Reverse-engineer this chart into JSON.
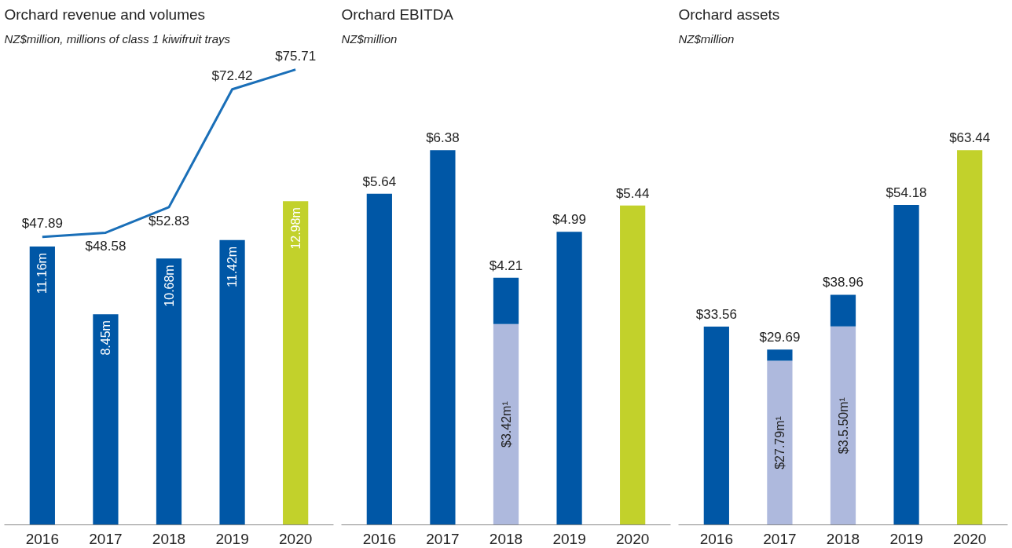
{
  "chart_data": [
    {
      "type": "bar",
      "title": "Orchard revenue and volumes",
      "subtitle": "NZ$million, millions of class 1 kiwifruit trays",
      "categories": [
        "2016",
        "2017",
        "2018",
        "2019",
        "2020"
      ],
      "tick_labels": "x",
      "series": [
        {
          "type": "bar",
          "colors": [
            "#0057a6",
            "#0057a6",
            "#0057a6",
            "#0057a6",
            "#c2d12b"
          ],
          "values": [
            11.16,
            8.45,
            10.68,
            11.42,
            12.98
          ],
          "value_labels": [
            "11.16m",
            "8.45m",
            "10.68m",
            "11.42m",
            "12.98m"
          ]
        },
        {
          "type": "line",
          "axis": "y2",
          "color": "#1a6fb8",
          "values": [
            47.89,
            48.58,
            52.83,
            72.42,
            75.71
          ],
          "value_labels": [
            "$47.89",
            "$48.58",
            "$52.83",
            "$72.42",
            "$75.71"
          ]
        }
      ]
    },
    {
      "type": "bar",
      "title": "Orchard EBITDA",
      "subtitle": "NZ$million",
      "categories": [
        "2016",
        "2017",
        "2018",
        "2019",
        "2020"
      ],
      "tick_labels": "x",
      "stacked": true,
      "totals": [
        "$5.64",
        "$6.38",
        "$4.21",
        "$4.99",
        "$5.44"
      ],
      "series": [
        {
          "type": "bar",
          "color": "#aeb9dd",
          "values": [
            null,
            null,
            3.42,
            null,
            null
          ],
          "value_labels": [
            null,
            null,
            "$3.42m¹",
            null,
            null
          ]
        },
        {
          "type": "bar",
          "colors": [
            "#0057a6",
            "#0057a6",
            "#0057a6",
            "#0057a6",
            "#c2d12b"
          ],
          "values": [
            5.64,
            6.38,
            0.79,
            4.99,
            5.44
          ]
        }
      ]
    },
    {
      "type": "bar",
      "title": "Orchard assets",
      "subtitle": "NZ$million",
      "categories": [
        "2016",
        "2017",
        "2018",
        "2019",
        "2020"
      ],
      "tick_labels": "x",
      "stacked": true,
      "totals": [
        "$33.56",
        "$29.69",
        "$38.96",
        "$54.18",
        "$63.44"
      ],
      "series": [
        {
          "type": "bar",
          "color": "#aeb9dd",
          "values": [
            null,
            27.79,
            33.6,
            null,
            null
          ],
          "value_labels": [
            null,
            "$27.79m¹",
            "$3.5.50m¹",
            null,
            null
          ]
        },
        {
          "type": "bar",
          "colors": [
            "#0057a6",
            "#0057a6",
            "#0057a6",
            "#0057a6",
            "#c2d12b"
          ],
          "values": [
            33.56,
            1.9,
            5.36,
            54.18,
            63.44
          ]
        }
      ]
    }
  ]
}
